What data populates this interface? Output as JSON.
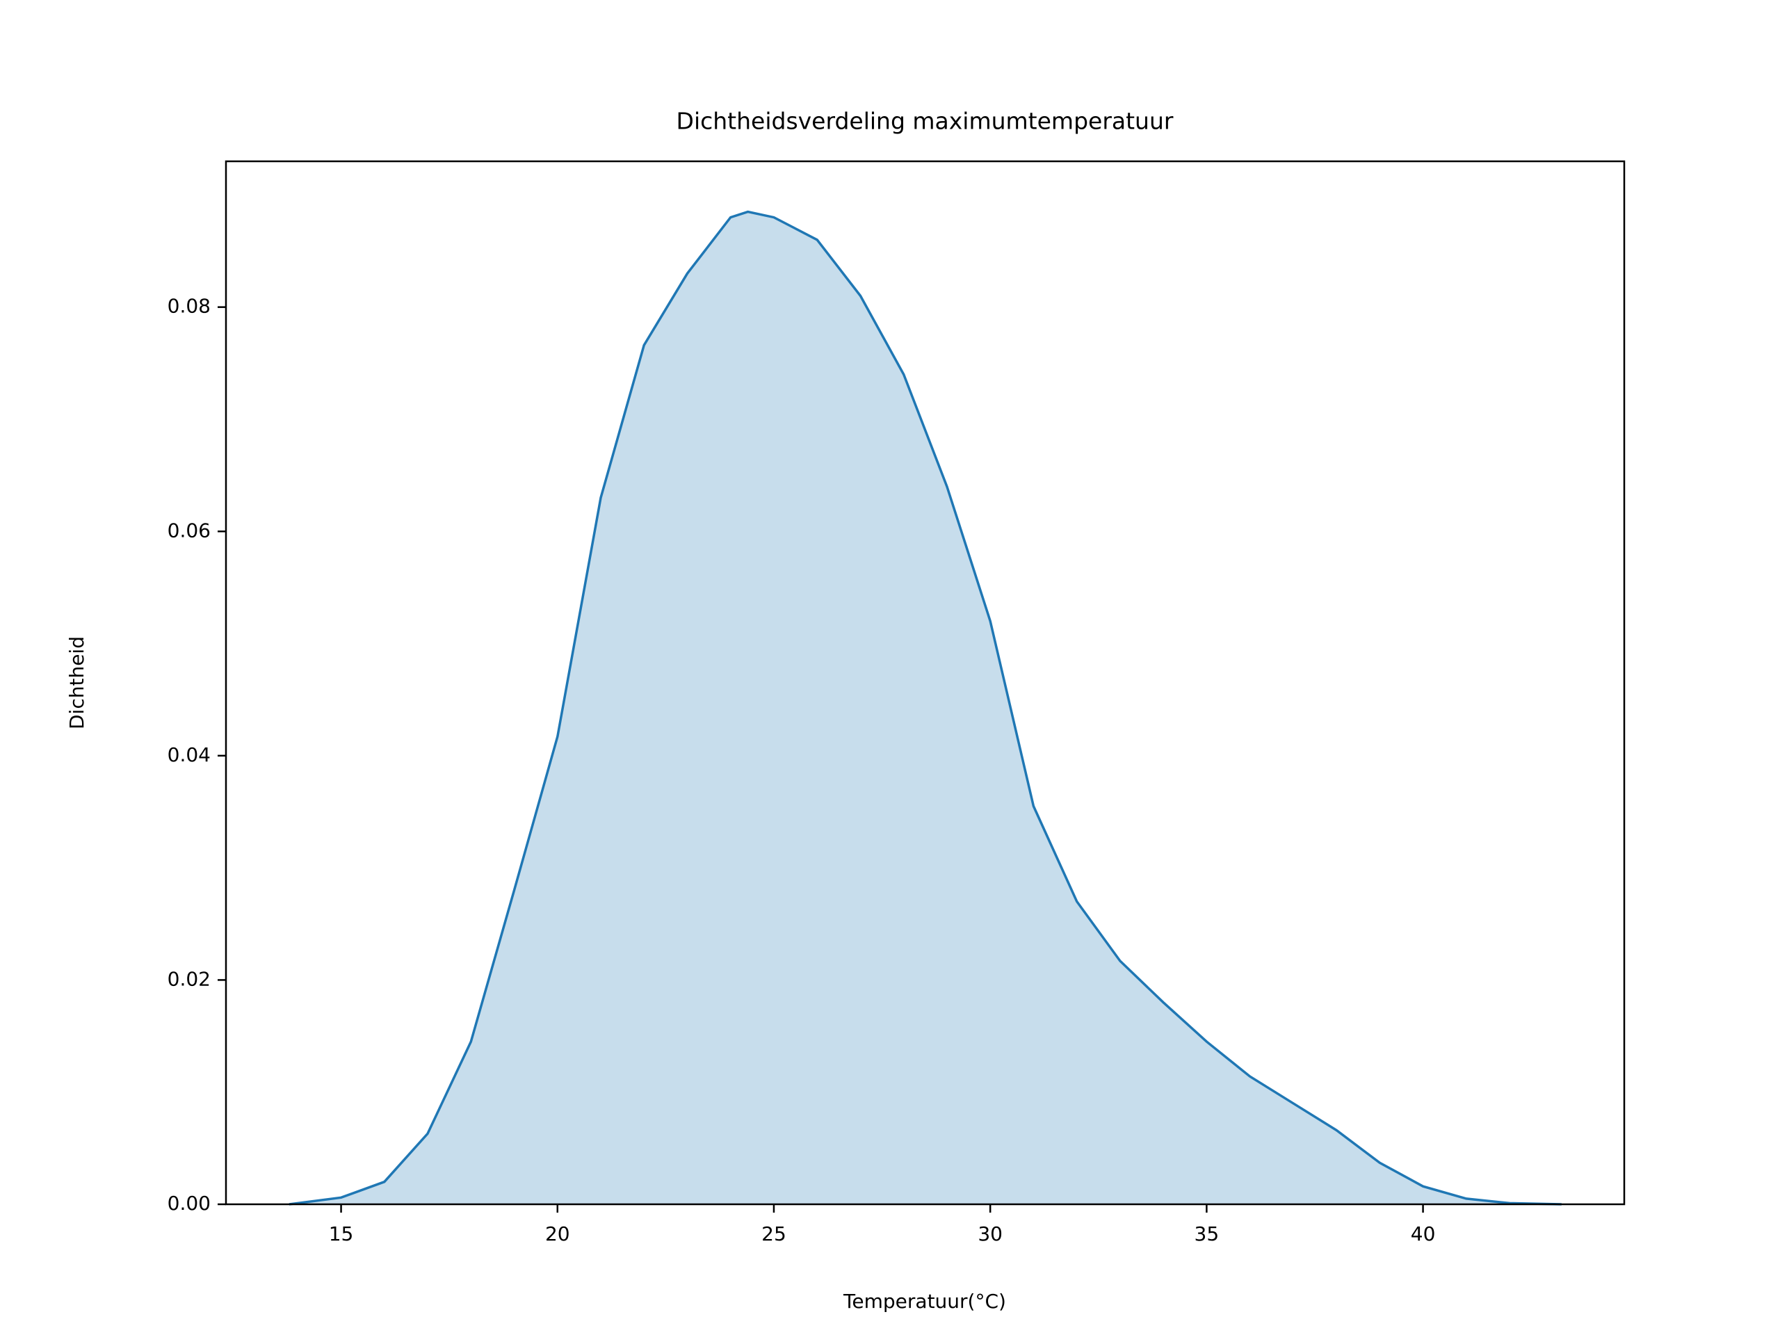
{
  "chart_data": {
    "type": "area",
    "title": "Dichtheidsverdeling maximumtemperatuur",
    "xlabel": "Temperatuur(°C)",
    "ylabel": "Dichtheid",
    "x": [
      13.8,
      15,
      16,
      17,
      18,
      19,
      20,
      21,
      22,
      23,
      24,
      24.4,
      25,
      26,
      27,
      28,
      29,
      30,
      31,
      32,
      33,
      34,
      35,
      36,
      37,
      38,
      39,
      40,
      41,
      42,
      43.2
    ],
    "values": [
      0.0,
      0.0006,
      0.002,
      0.0063,
      0.0145,
      0.028,
      0.0417,
      0.063,
      0.0766,
      0.083,
      0.088,
      0.0885,
      0.088,
      0.086,
      0.081,
      0.074,
      0.064,
      0.052,
      0.0355,
      0.027,
      0.0217,
      0.018,
      0.0145,
      0.0114,
      0.009,
      0.0066,
      0.0037,
      0.0016,
      0.0005,
      0.0001,
      0.0
    ],
    "color": "#1f77b4",
    "xlim": [
      12.34,
      44.65
    ],
    "ylim": [
      0,
      0.093
    ],
    "xticks": [
      15,
      20,
      25,
      30,
      35,
      40
    ],
    "yticks": [
      {
        "value": 0,
        "label": "0.00"
      },
      {
        "value": 0.02,
        "label": "0.02"
      },
      {
        "value": 0.04,
        "label": "0.04"
      },
      {
        "value": 0.06,
        "label": "0.06"
      },
      {
        "value": 0.08,
        "label": "0.08"
      }
    ]
  }
}
